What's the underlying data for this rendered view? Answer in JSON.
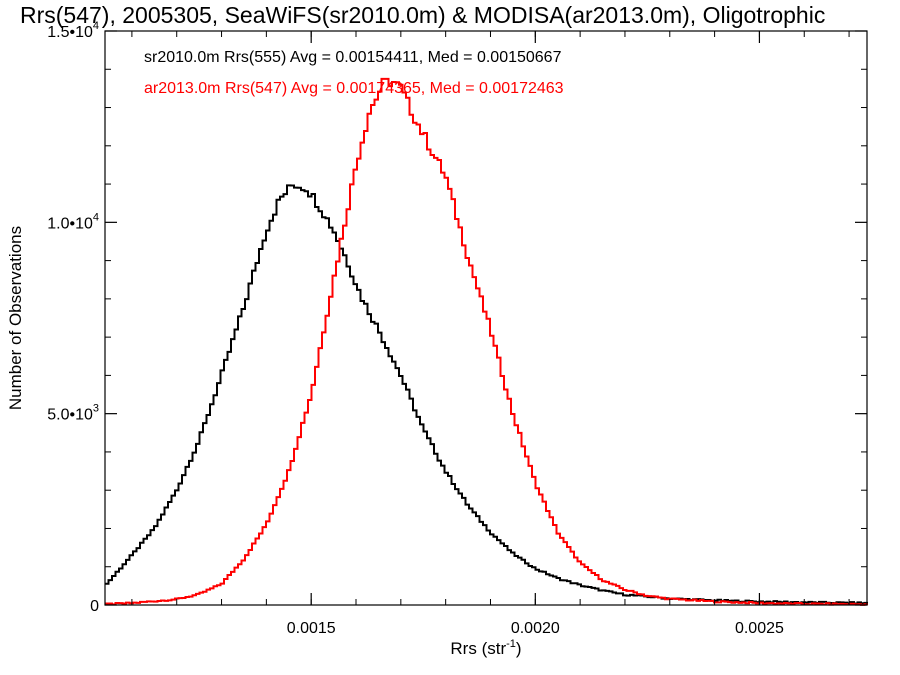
{
  "chart_data": {
    "type": "line",
    "title": "Rrs(547), 2005305, SeaWiFS(sr2010.0m) & MODISA(ar2013.0m), Oligotrophic",
    "xlabel": "Rrs (str",
    "xlabel_sup": "-1",
    "xlabel_close": ")",
    "ylabel": "Number of Observations",
    "xlim": [
      0.00104,
      0.00274
    ],
    "ylim": [
      0,
      15000
    ],
    "x_ticks": [
      {
        "value": 0.0015,
        "label": "0.0015"
      },
      {
        "value": 0.002,
        "label": "0.0020"
      },
      {
        "value": 0.0025,
        "label": "0.0025"
      }
    ],
    "y_ticks": [
      {
        "value": 0,
        "label": "0",
        "sup": ""
      },
      {
        "value": 5000,
        "label": "5.0•10",
        "sup": "3"
      },
      {
        "value": 10000,
        "label": "1.0•10",
        "sup": "4"
      },
      {
        "value": 15000,
        "label": "1.5•10",
        "sup": "4"
      }
    ],
    "grid": false,
    "legend_position": "top-left",
    "series": [
      {
        "name": "sr2010.0m Rrs(555) Avg = 0.00154411, Med = 0.00150667",
        "color": "#000000",
        "x": [
          0.00104,
          0.0011,
          0.00115,
          0.0012,
          0.00125,
          0.0013,
          0.00135,
          0.0014,
          0.00143,
          0.00146,
          0.00149,
          0.00152,
          0.00155,
          0.00158,
          0.00161,
          0.00165,
          0.0017,
          0.00175,
          0.0018,
          0.00185,
          0.0019,
          0.00195,
          0.002,
          0.00205,
          0.0021,
          0.00215,
          0.0022,
          0.0023,
          0.0024,
          0.0025,
          0.0026,
          0.00274
        ],
        "y": [
          500,
          1300,
          2000,
          3000,
          4300,
          6000,
          7800,
          9800,
          10600,
          11000,
          10900,
          10400,
          9800,
          9000,
          8100,
          7200,
          6000,
          4600,
          3500,
          2600,
          1900,
          1350,
          950,
          700,
          520,
          380,
          270,
          170,
          120,
          90,
          70,
          50
        ]
      },
      {
        "name": "ar2013.0m Rrs(547) Avg = 0.00174365, Med = 0.00172463",
        "color": "#ff0000",
        "x": [
          0.00104,
          0.0011,
          0.0012,
          0.00125,
          0.0013,
          0.00135,
          0.0014,
          0.00145,
          0.0015,
          0.00155,
          0.0016,
          0.00163,
          0.00166,
          0.00168,
          0.0017,
          0.00172,
          0.00175,
          0.0018,
          0.00185,
          0.0019,
          0.00195,
          0.002,
          0.00205,
          0.0021,
          0.00215,
          0.0022,
          0.00225,
          0.0023,
          0.0024,
          0.0025,
          0.0026,
          0.00274
        ],
        "y": [
          20,
          50,
          150,
          280,
          550,
          1200,
          2100,
          3500,
          5500,
          8500,
          11500,
          12900,
          13600,
          13700,
          13500,
          13000,
          12300,
          11200,
          9100,
          7200,
          5000,
          3200,
          1900,
          1100,
          650,
          400,
          240,
          160,
          90,
          50,
          30,
          20
        ]
      }
    ]
  }
}
